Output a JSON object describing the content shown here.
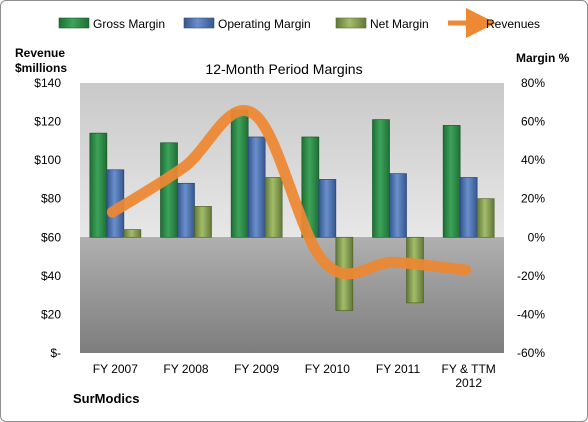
{
  "chart_data": {
    "type": "bar",
    "title": "12-Month Period Margins",
    "company": "SurModics",
    "categories": [
      "FY 2007",
      "FY 2008",
      "FY 2009",
      "FY 2010",
      "FY 2011",
      "FY & TTM 2012"
    ],
    "category_lines": [
      [
        "FY 2007"
      ],
      [
        "FY 2008"
      ],
      [
        "FY 2009"
      ],
      [
        "FY 2010"
      ],
      [
        "FY 2011"
      ],
      [
        "FY & TTM",
        "2012"
      ]
    ],
    "left_axis": {
      "label_lines": [
        "Revenue",
        "$millions"
      ],
      "min": 0,
      "max": 140,
      "ticks": [
        0,
        20,
        40,
        60,
        80,
        100,
        120,
        140
      ],
      "tick_labels": [
        "$-",
        "$20",
        "$40",
        "$60",
        "$80",
        "$100",
        "$120",
        "$140"
      ]
    },
    "right_axis": {
      "label": "Margin %",
      "min": -60,
      "max": 80,
      "ticks": [
        -60,
        -40,
        -20,
        0,
        20,
        40,
        60,
        80
      ],
      "tick_labels": [
        "-60%",
        "-40%",
        "-20%",
        "0%",
        "20%",
        "40%",
        "60%",
        "80%"
      ]
    },
    "series": [
      {
        "name": "Gross Margin",
        "type": "bar",
        "axis": "right",
        "color": "#2e8b46",
        "values": [
          54,
          49,
          66,
          52,
          61,
          58
        ]
      },
      {
        "name": "Operating Margin",
        "type": "bar",
        "axis": "right",
        "color": "#4a6fb0",
        "values": [
          35,
          28,
          52,
          30,
          33,
          31
        ]
      },
      {
        "name": "Net Margin",
        "type": "bar",
        "axis": "right",
        "color": "#7f9a48",
        "values": [
          4,
          16,
          31,
          -38,
          -34,
          20
        ]
      },
      {
        "name": "Revenues",
        "type": "line",
        "axis": "left",
        "color": "#ee8833",
        "values": [
          73,
          96,
          124,
          47,
          47,
          43
        ]
      }
    ],
    "legend_position": "top",
    "grid": false
  }
}
